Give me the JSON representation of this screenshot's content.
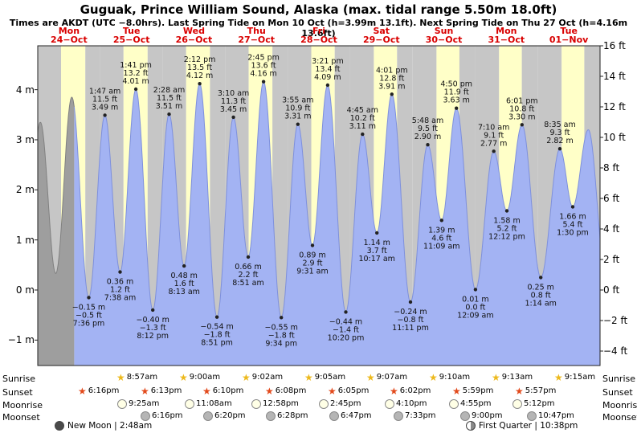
{
  "title": "Guguak, Prince William Sound, Alaska (max. tidal range 5.50m 18.0ft)",
  "subtitle": "Times are AKDT (UTC −8.0hrs). Last Spring Tide on Mon 10 Oct (h=3.99m 13.1ft). Next Spring Tide on Thu 27 Oct (h=4.16m 13.6ft)",
  "side_labels": {
    "sunrise": "Sunrise",
    "sunset": "Sunset",
    "moonrise": "Moonrise",
    "moonset": "Moonset"
  },
  "phases": {
    "new_moon": "New Moon | 2:48am",
    "first_quarter": "First Quarter | 10:38pm"
  },
  "chart_data": {
    "type": "area",
    "ylabel_left": "m",
    "ylabel_right": "ft",
    "ylim_m": [
      -1.5,
      4.9
    ],
    "days": [
      {
        "name": "Mon",
        "date": "24−Oct"
      },
      {
        "name": "Tue",
        "date": "25−Oct"
      },
      {
        "name": "Wed",
        "date": "26−Oct"
      },
      {
        "name": "Thu",
        "date": "27−Oct"
      },
      {
        "name": "Fri",
        "date": "28−Oct"
      },
      {
        "name": "Sat",
        "date": "29−Oct"
      },
      {
        "name": "Sun",
        "date": "30−Oct"
      },
      {
        "name": "Mon",
        "date": "31−Oct"
      },
      {
        "name": "Tue",
        "date": "01−Nov"
      }
    ],
    "y_axis_left": {
      "ticks": [
        4,
        3,
        2,
        1,
        0,
        -1
      ],
      "labels": [
        "4 m",
        "3 m",
        "2 m",
        "1 m",
        "0 m",
        "−1 m"
      ]
    },
    "y_axis_right": {
      "ticks": [
        16,
        14,
        12,
        10,
        8,
        6,
        4,
        2,
        0,
        -2,
        -4
      ],
      "labels": [
        "16 ft",
        "14 ft",
        "12 ft",
        "10 ft",
        "8 ft",
        "6 ft",
        "4 ft",
        "2 ft",
        "0 ft",
        "−2 ft",
        "−4 ft"
      ]
    },
    "colors": {
      "day": "#ffffc8",
      "night": "#c6c6c6",
      "tide": "#a3b3f3",
      "tide_past": "#9e9e9e",
      "day_label": "#d90000"
    },
    "past_until_hours": 14,
    "sun": {
      "sunrise": {
        "start_day": 1,
        "times": [
          "8:57am",
          "9:00am",
          "9:02am",
          "9:05am",
          "9:07am",
          "9:10am",
          "9:13am",
          "9:15am"
        ]
      },
      "sunset": {
        "start_day": 0,
        "times": [
          "6:16pm",
          "6:13pm",
          "6:10pm",
          "6:08pm",
          "6:05pm",
          "6:02pm",
          "5:59pm",
          "5:57pm"
        ]
      }
    },
    "moon": {
      "moonrise": {
        "start_day": 1,
        "times": [
          "9:25am",
          "11:08am",
          "12:58pm",
          "2:45pm",
          "4:10pm",
          "4:55pm",
          "5:12pm"
        ]
      },
      "moonset": {
        "start_day": 1,
        "times": [
          "6:16pm",
          "6:20pm",
          "6:28pm",
          "6:47pm",
          "7:33pm",
          "9:00pm",
          "10:47pm"
        ]
      }
    },
    "tide_events": [
      {
        "d": -1,
        "time": "6:50 pm",
        "h": -0.1,
        "hidden": true
      },
      {
        "d": 0,
        "time": "1:00 am",
        "h": 3.35,
        "hidden": true
      },
      {
        "d": 0,
        "time": "6:55 am",
        "h": 0.33,
        "hidden": true
      },
      {
        "d": 0,
        "time": "1:05 pm",
        "h": 3.85,
        "hidden": true
      },
      {
        "d": 0,
        "time": "7:36 pm",
        "type": "low",
        "h": -0.15,
        "m": "−0.15 m",
        "ft": "−0.5 ft"
      },
      {
        "d": 1,
        "time": "1:47 am",
        "type": "high",
        "h": 3.49,
        "m": "3.49 m",
        "ft": "11.5 ft"
      },
      {
        "d": 1,
        "time": "7:38 am",
        "type": "low",
        "h": 0.36,
        "m": "0.36 m",
        "ft": "1.2 ft"
      },
      {
        "d": 1,
        "time": "1:41 pm",
        "type": "high",
        "h": 4.01,
        "m": "4.01 m",
        "ft": "13.2 ft"
      },
      {
        "d": 1,
        "time": "8:12 pm",
        "type": "low",
        "h": -0.4,
        "m": "−0.40 m",
        "ft": "−1.3 ft"
      },
      {
        "d": 2,
        "time": "2:28 am",
        "type": "high",
        "h": 3.51,
        "m": "3.51 m",
        "ft": "11.5 ft"
      },
      {
        "d": 2,
        "time": "8:13 am",
        "type": "low",
        "h": 0.48,
        "m": "0.48 m",
        "ft": "1.6 ft"
      },
      {
        "d": 2,
        "time": "2:12 pm",
        "type": "high",
        "h": 4.12,
        "m": "4.12 m",
        "ft": "13.5 ft"
      },
      {
        "d": 2,
        "time": "8:51 pm",
        "type": "low",
        "h": -0.54,
        "m": "−0.54 m",
        "ft": "−1.8 ft"
      },
      {
        "d": 3,
        "time": "3:10 am",
        "type": "high",
        "h": 3.45,
        "m": "3.45 m",
        "ft": "11.3 ft"
      },
      {
        "d": 3,
        "time": "8:51 am",
        "type": "low",
        "h": 0.66,
        "m": "0.66 m",
        "ft": "2.2 ft"
      },
      {
        "d": 3,
        "time": "2:45 pm",
        "type": "high",
        "h": 4.16,
        "m": "4.16 m",
        "ft": "13.6 ft"
      },
      {
        "d": 3,
        "time": "9:34 pm",
        "type": "low",
        "h": -0.55,
        "m": "−0.55 m",
        "ft": "−1.8 ft"
      },
      {
        "d": 4,
        "time": "3:55 am",
        "type": "high",
        "h": 3.31,
        "m": "3.31 m",
        "ft": "10.9 ft"
      },
      {
        "d": 4,
        "time": "9:31 am",
        "type": "low",
        "h": 0.89,
        "m": "0.89 m",
        "ft": "2.9 ft"
      },
      {
        "d": 4,
        "time": "3:21 pm",
        "type": "high",
        "h": 4.09,
        "m": "4.09 m",
        "ft": "13.4 ft"
      },
      {
        "d": 4,
        "time": "10:20 pm",
        "type": "low",
        "h": -0.44,
        "m": "−0.44 m",
        "ft": "−1.4 ft"
      },
      {
        "d": 5,
        "time": "4:45 am",
        "type": "high",
        "h": 3.11,
        "m": "3.11 m",
        "ft": "10.2 ft"
      },
      {
        "d": 5,
        "time": "10:17 am",
        "type": "low",
        "h": 1.14,
        "m": "1.14 m",
        "ft": "3.7 ft"
      },
      {
        "d": 5,
        "time": "4:01 pm",
        "type": "high",
        "h": 3.91,
        "m": "3.91 m",
        "ft": "12.8 ft"
      },
      {
        "d": 5,
        "time": "11:11 pm",
        "type": "low",
        "h": -0.24,
        "m": "−0.24 m",
        "ft": "−0.8 ft"
      },
      {
        "d": 6,
        "time": "5:48 am",
        "type": "high",
        "h": 2.9,
        "m": "2.90 m",
        "ft": "9.5 ft"
      },
      {
        "d": 6,
        "time": "11:09 am",
        "type": "low",
        "h": 1.39,
        "m": "1.39 m",
        "ft": "4.6 ft"
      },
      {
        "d": 6,
        "time": "4:50 pm",
        "type": "high",
        "h": 3.63,
        "m": "3.63 m",
        "ft": "11.9 ft"
      },
      {
        "d": 7,
        "time": "12:09 am",
        "type": "low",
        "h": 0.01,
        "m": "0.01 m",
        "ft": "0.0 ft"
      },
      {
        "d": 7,
        "time": "7:10 am",
        "type": "high",
        "h": 2.77,
        "m": "2.77 m",
        "ft": "9.1 ft"
      },
      {
        "d": 7,
        "time": "12:12 pm",
        "type": "low",
        "h": 1.58,
        "m": "1.58 m",
        "ft": "5.2 ft"
      },
      {
        "d": 7,
        "time": "6:01 pm",
        "type": "high",
        "h": 3.3,
        "m": "3.30 m",
        "ft": "10.8 ft"
      },
      {
        "d": 8,
        "time": "1:14 am",
        "type": "low",
        "h": 0.25,
        "m": "0.25 m",
        "ft": "0.8 ft"
      },
      {
        "d": 8,
        "time": "8:35 am",
        "type": "high",
        "h": 2.82,
        "m": "2.82 m",
        "ft": "9.3 ft"
      },
      {
        "d": 8,
        "time": "1:30 pm",
        "type": "low",
        "h": 1.66,
        "m": "1.66 m",
        "ft": "5.4 ft"
      },
      {
        "d": 8,
        "time": "7:30 pm",
        "h": 3.2,
        "hidden": true
      },
      {
        "d": 9,
        "time": "2:15 am",
        "h": 0.3,
        "hidden": true
      }
    ]
  }
}
